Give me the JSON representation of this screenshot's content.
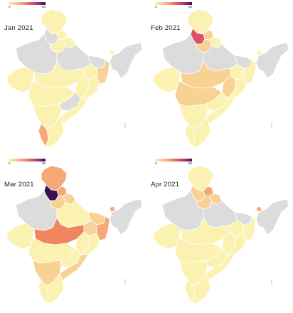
{
  "legend": {
    "min": "0",
    "max": "60"
  },
  "palette": {
    "low": "#fbf2b2",
    "low_mid": "#f8d295",
    "mid": "#f6a878",
    "orange": "#f08660",
    "red": "#de4f6b",
    "dark": "#3b0e57",
    "no_data": "#dcdcdc"
  },
  "panels": [
    {
      "label": "Jan 2021",
      "colors": {
        "jk": "low",
        "hp": "low",
        "pb": "no_data",
        "ut": "low",
        "rj": "no_data",
        "hr": "low",
        "up": "no_data",
        "bihar": "no_data",
        "wb": "low_mid",
        "gj": "low",
        "mp": "low",
        "jh": "low",
        "ch": "low",
        "od": "low",
        "mh": "low",
        "tg": "no_data",
        "ap": "low",
        "ka": "low",
        "kl": "mid",
        "tn": "low",
        "ne": "no_data",
        "sikkim": "low"
      }
    },
    {
      "label": "Feb 2021",
      "colors": {
        "jk": "low",
        "hp": "low_mid",
        "pb": "red",
        "ut": "low",
        "rj": "no_data",
        "hr": "low_mid",
        "up": "no_data",
        "bihar": "no_data",
        "wb": "low",
        "gj": "low",
        "mp": "low_mid",
        "jh": "low",
        "ch": "low_mid",
        "od": "low",
        "mh": "low_mid",
        "tg": "low",
        "ap": "low",
        "ka": "low",
        "kl": "low",
        "tn": "low",
        "ne": "no_data",
        "sikkim": "low"
      }
    },
    {
      "label": "Mar 2021",
      "colors": {
        "jk": "mid",
        "hp": "mid",
        "pb": "dark",
        "ut": "low_mid",
        "rj": "no_data",
        "hr": "low_mid",
        "up": "low",
        "bihar": "low_mid",
        "wb": "mid",
        "gj": "low",
        "mp": "orange",
        "jh": "low_mid",
        "ch": "low",
        "od": "low",
        "mh": "low",
        "tg": "low",
        "ap": "low_mid",
        "ka": "low_mid",
        "kl": "low",
        "tn": "low",
        "ne": "no_data",
        "sikkim": "mid"
      }
    },
    {
      "label": "Apr 2021",
      "colors": {
        "jk": "low",
        "hp": "mid",
        "pb": "low_mid",
        "ut": "low_mid",
        "rj": "no_data",
        "hr": "low_mid",
        "up": "no_data",
        "bihar": "no_data",
        "wb": "low",
        "gj": "low",
        "mp": "low",
        "jh": "low",
        "ch": "low",
        "od": "low",
        "mh": "low",
        "tg": "low",
        "ap": "low",
        "ka": "low",
        "kl": "low",
        "tn": "low",
        "ne": "no_data",
        "sikkim": "mid"
      }
    }
  ]
}
